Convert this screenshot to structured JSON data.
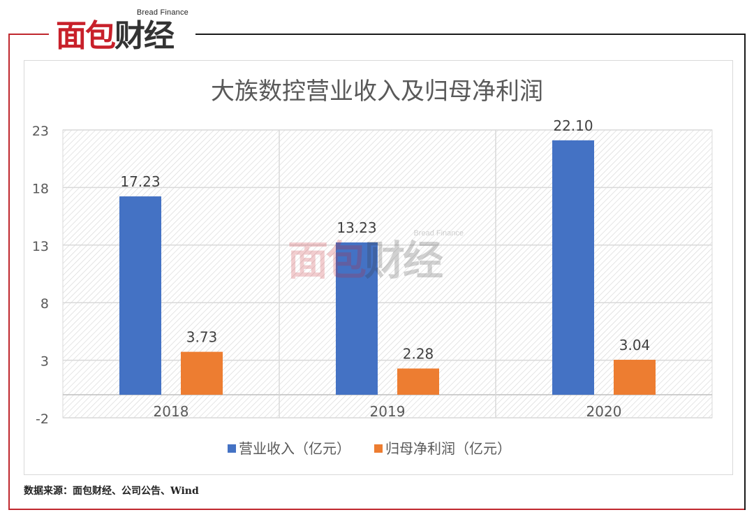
{
  "logo": {
    "en": "Bread Finance",
    "cn_red": "面包",
    "cn_dark": "财经"
  },
  "watermark": {
    "en": "Bread Finance",
    "cn_red": "面包",
    "cn_dark": "财经"
  },
  "source": "数据来源：面包财经、公司公告、Wind",
  "colors": {
    "revenue": "#4472c4",
    "profit": "#ed7d31",
    "brand_red": "#c8202a"
  },
  "chart_data": {
    "type": "bar",
    "title": "大族数控营业收入及归母净利润",
    "categories": [
      "2018",
      "2019",
      "2020"
    ],
    "series": [
      {
        "name": "营业收入（亿元）",
        "values": [
          17.23,
          13.23,
          22.1
        ],
        "labels": [
          "17.23",
          "13.23",
          "22.10"
        ]
      },
      {
        "name": "归母净利润（亿元）",
        "values": [
          3.73,
          2.28,
          3.04
        ],
        "labels": [
          "3.73",
          "2.28",
          "3.04"
        ]
      }
    ],
    "ylim": [
      -2,
      23
    ],
    "yticks": [
      23,
      18,
      13,
      8,
      3,
      -2
    ],
    "grid": true,
    "legend": "bottom"
  }
}
